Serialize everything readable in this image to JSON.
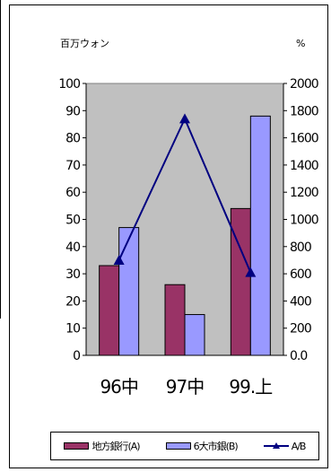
{
  "chart_data": {
    "type": "bar",
    "categories": [
      "96中",
      "97中",
      "99.上"
    ],
    "series": [
      {
        "name": "地方銀行(A)",
        "type": "bar",
        "axis": "left",
        "color": "#993366",
        "values": [
          33,
          26,
          54
        ]
      },
      {
        "name": "6大市銀(B)",
        "type": "bar",
        "axis": "left",
        "color": "#9999ff",
        "values": [
          47,
          15,
          88
        ]
      },
      {
        "name": "A/B",
        "type": "line",
        "axis": "right",
        "color": "#000080",
        "values": [
          700,
          1740,
          610
        ]
      }
    ],
    "left_axis": {
      "unit": "百万ウォン",
      "ylim": [
        0,
        100
      ],
      "ticks": [
        "0",
        "10",
        "20",
        "30",
        "40",
        "50",
        "60",
        "70",
        "80",
        "90",
        "100"
      ]
    },
    "right_axis": {
      "unit": "%",
      "ylim": [
        0,
        2000
      ],
      "ticks": [
        "0.0",
        "200",
        "400",
        "600",
        "800",
        "1000",
        "1200",
        "1400",
        "1600",
        "1800",
        "2000"
      ]
    },
    "plot_background": "#c0c0c0",
    "grid": false,
    "legend_position": "bottom"
  }
}
